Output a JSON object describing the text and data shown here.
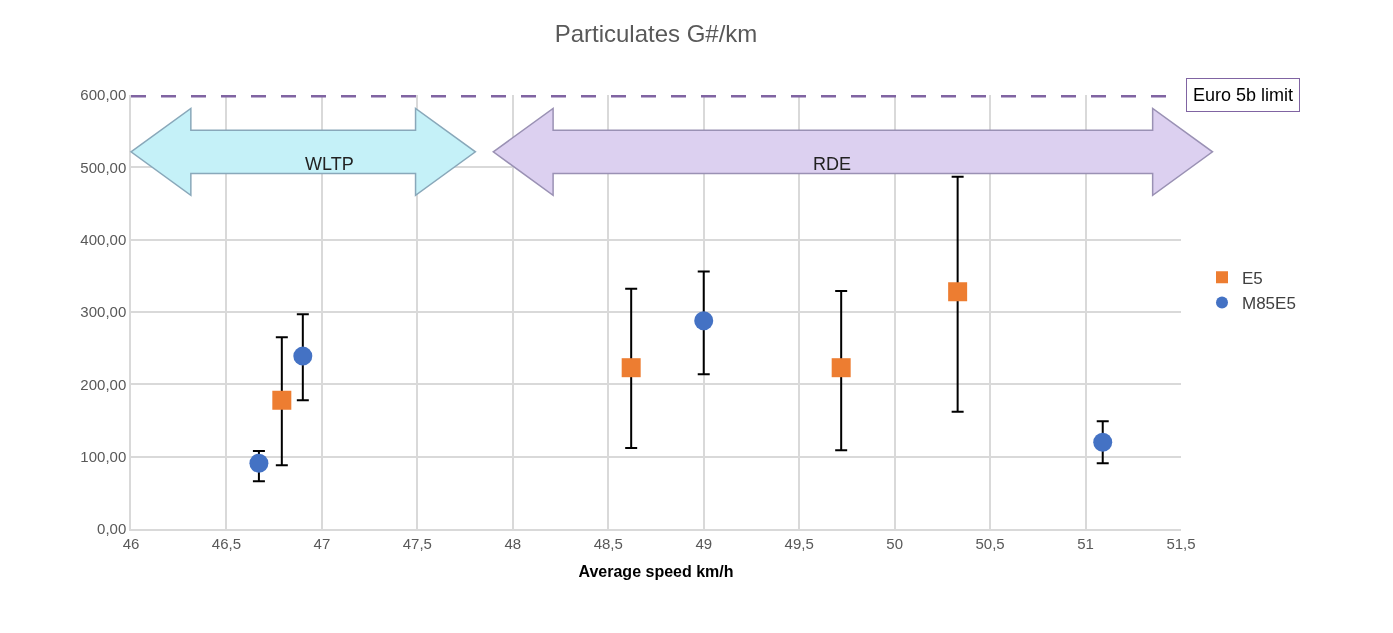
{
  "chart_data": {
    "type": "scatter",
    "title": "Particulates G#/km",
    "xlabel": "Average speed km/h",
    "series": [
      {
        "name": "E5",
        "color": "#ed7d31",
        "marker": "square",
        "x": [
          46.79,
          48.62,
          49.72,
          50.33
        ],
        "values": [
          178,
          223,
          223,
          328
        ],
        "errors": [
          [
            88,
            265
          ],
          [
            112,
            332
          ],
          [
            109,
            329
          ],
          [
            162,
            487
          ]
        ]
      },
      {
        "name": "M85E5",
        "color": "#4472c4",
        "marker": "circle",
        "x": [
          46.67,
          46.9,
          49.0,
          51.09
        ],
        "values": [
          91,
          239,
          288,
          120
        ],
        "errors": [
          [
            66,
            108
          ],
          [
            178,
            297
          ],
          [
            214,
            356
          ],
          [
            91,
            149
          ]
        ]
      }
    ],
    "xlim": [
      46,
      51.5
    ],
    "xticks": [
      46,
      {
        "value": 46.5,
        "label": "46,5"
      },
      47,
      {
        "value": 47.5,
        "label": "47,5"
      },
      48,
      {
        "value": 48.5,
        "label": "48,5"
      },
      49,
      {
        "value": 49.5,
        "label": "49,5"
      },
      50,
      {
        "value": 50.5,
        "label": "50,5"
      },
      51,
      {
        "value": 51.5,
        "label": "51,5"
      }
    ],
    "ylim": [
      0,
      600
    ],
    "yticks": [
      {
        "value": 0,
        "label": "0,00"
      },
      {
        "value": 100,
        "label": "100,00"
      },
      {
        "value": 200,
        "label": "200,00"
      },
      {
        "value": 300,
        "label": "300,00"
      },
      {
        "value": 400,
        "label": "400,00"
      },
      {
        "value": 500,
        "label": "500,00"
      },
      {
        "value": 600,
        "label": "600,00"
      }
    ],
    "ref_lines": [
      {
        "axis": "y",
        "value": 600,
        "label": "Euro 5b limit",
        "color": "#8064a2",
        "line_style": "dashed"
      }
    ],
    "annotations": [
      "WLTP",
      "RDE"
    ],
    "grid": true,
    "legend": "right"
  }
}
